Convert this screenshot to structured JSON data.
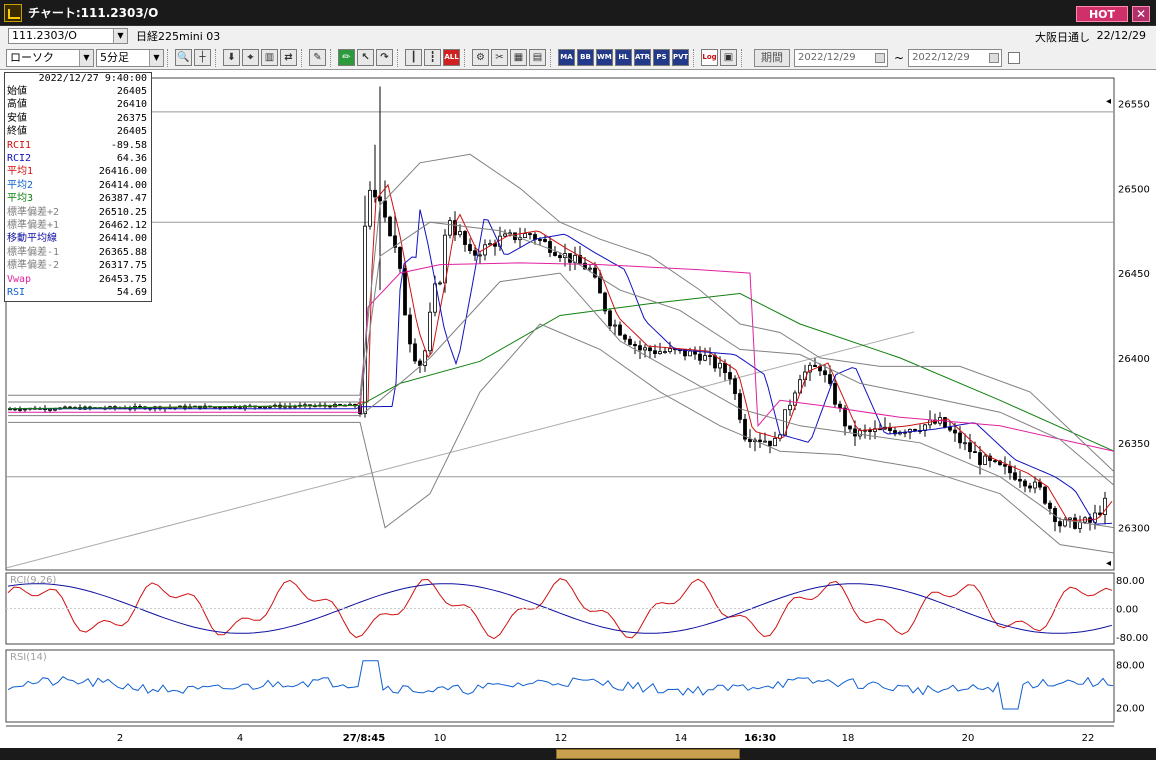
{
  "window": {
    "title": "チャート:111.2303/O",
    "hot_label": "HOT",
    "close_label": "✕"
  },
  "info_row": {
    "symbol": "111.2303/O",
    "instrument_name": "日経225mini 03",
    "session_label": "大阪日通し",
    "session_date": "22/12/29"
  },
  "toolbar": {
    "chart_type": "ローソク",
    "interval": "5分足",
    "buttons": [
      "zoom-icon",
      "crosshair-icon",
      "download-icon",
      "tick-icon",
      "bars-icon",
      "compare-icon",
      "note-icon",
      "pen-icon",
      "cursor-icon",
      "redo-icon",
      "candle-icon",
      "candle2-icon",
      "ALL",
      "settings-icon",
      "eraser-icon",
      "palette-icon",
      "grid-icon",
      "MA",
      "BB",
      "WMA",
      "HL",
      "ATR",
      "PS",
      "PVT",
      "Log",
      "export-icon"
    ],
    "period_label": "期間",
    "date_from": "2022/12/29",
    "tilde": "~",
    "date_to": "2022/12/29"
  },
  "data_window": {
    "timestamp": "2022/12/27 9:40:00",
    "rows": [
      {
        "label": "始値",
        "value": "26405",
        "color": "#000000"
      },
      {
        "label": "高値",
        "value": "26410",
        "color": "#000000"
      },
      {
        "label": "安値",
        "value": "26375",
        "color": "#000000"
      },
      {
        "label": "終値",
        "value": "26405",
        "color": "#000000"
      },
      {
        "label": "RCI1",
        "value": "-89.58",
        "color": "#d01010"
      },
      {
        "label": "RCI2",
        "value": "64.36",
        "color": "#1010c0"
      },
      {
        "label": "平均1",
        "value": "26416.00",
        "color": "#d01010"
      },
      {
        "label": "平均2",
        "value": "26414.00",
        "color": "#1060d0"
      },
      {
        "label": "平均3",
        "value": "26387.47",
        "color": "#108010"
      },
      {
        "label": "標準偏差+2",
        "value": "26510.25",
        "color": "#808080"
      },
      {
        "label": "標準偏差+1",
        "value": "26462.12",
        "color": "#808080"
      },
      {
        "label": "移動平均線",
        "value": "26414.00",
        "color": "#1010a0"
      },
      {
        "label": "標準偏差-1",
        "value": "26365.88",
        "color": "#808080"
      },
      {
        "label": "標準偏差-2",
        "value": "26317.75",
        "color": "#808080"
      },
      {
        "label": "Vwap",
        "value": "26453.75",
        "color": "#e020a0"
      },
      {
        "label": "RSI",
        "value": "54.69",
        "color": "#1060d0"
      }
    ]
  },
  "chart_data": {
    "type": "candlestick",
    "price_axis": {
      "ticks": [
        "26550",
        "26500",
        "26450",
        "26400",
        "26350",
        "26300"
      ],
      "range": [
        26275,
        26565
      ]
    },
    "x_axis": {
      "ticks": [
        "2",
        "4",
        "27/8:45",
        "10",
        "12",
        "14",
        "16:30",
        "18",
        "20",
        "22"
      ],
      "bold": [
        "27/8:45",
        "16:30"
      ]
    },
    "horizontal_lines": [
      26545,
      26480,
      26330
    ],
    "rci_pane": {
      "label": "RCI(9,26)",
      "ticks": [
        "80.00",
        "0.00",
        "-80.00"
      ],
      "range": [
        -100,
        100
      ]
    },
    "rsi_pane": {
      "label": "RSI(14)",
      "ticks": [
        "80.00",
        "20.00"
      ],
      "range": [
        0,
        100
      ]
    },
    "colors": {
      "ma1": "#d01010",
      "ma2": "#1010c0",
      "ma3": "#108010",
      "bands": "#808080",
      "vwap": "#e020a0",
      "rsi": "#1060d0",
      "rci1": "#d01010",
      "rci2": "#1010a0"
    }
  }
}
